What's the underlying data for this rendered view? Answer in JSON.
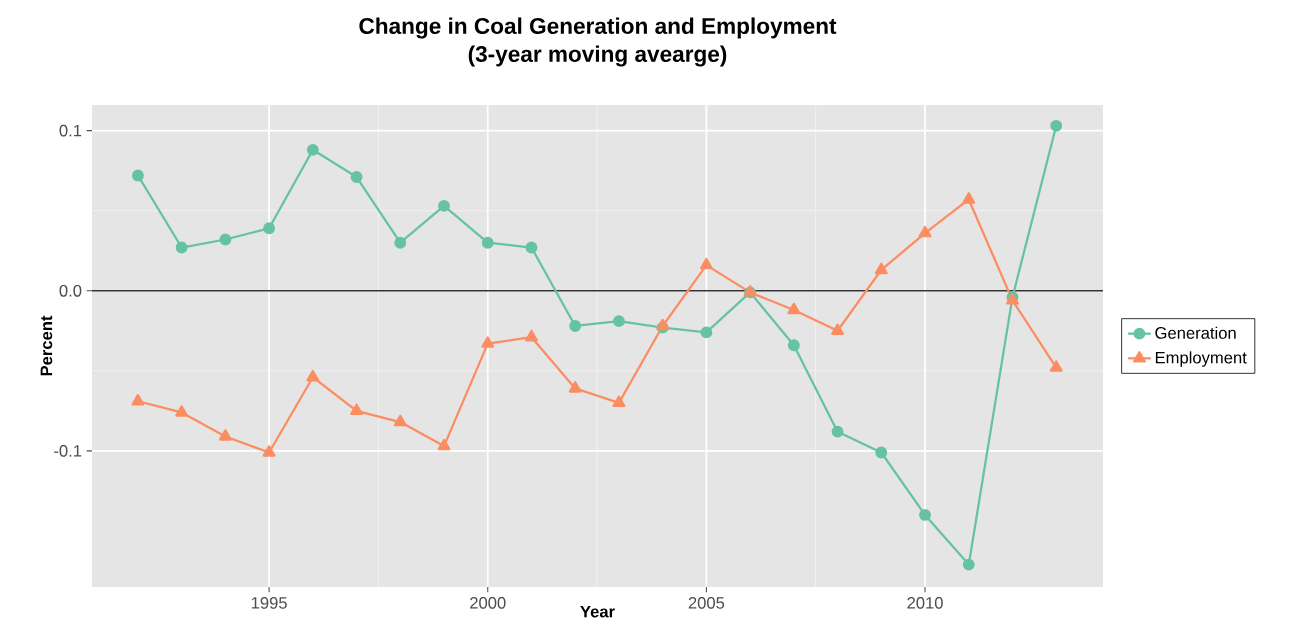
{
  "chart_data": {
    "type": "line",
    "title": "Change in Coal Generation and Employment",
    "subtitle": "(3-year moving avearge)",
    "xlabel": "Year",
    "ylabel": "Percent",
    "x": [
      1992,
      1993,
      1994,
      1995,
      1996,
      1997,
      1998,
      1999,
      2000,
      2001,
      2002,
      2003,
      2004,
      2005,
      2006,
      2007,
      2008,
      2009,
      2010,
      2011,
      2012,
      2013
    ],
    "series": [
      {
        "name": "Generation",
        "color": "#66c2a5",
        "marker": "circle",
        "values": [
          0.072,
          0.027,
          0.032,
          0.039,
          0.088,
          0.071,
          0.03,
          0.053,
          0.03,
          0.027,
          -0.022,
          -0.019,
          -0.023,
          -0.026,
          -0.001,
          -0.034,
          -0.088,
          -0.101,
          -0.14,
          -0.171,
          -0.004,
          0.103
        ]
      },
      {
        "name": "Employment",
        "color": "#fc8d62",
        "marker": "triangle",
        "values": [
          -0.069,
          -0.076,
          -0.091,
          -0.101,
          -0.054,
          -0.075,
          -0.082,
          -0.097,
          -0.033,
          -0.029,
          -0.061,
          -0.07,
          -0.022,
          0.016,
          -0.001,
          -0.012,
          -0.025,
          0.013,
          0.036,
          0.057,
          -0.006,
          -0.048
        ]
      }
    ],
    "xlim": [
      1990.95,
      2014.07
    ],
    "ylim": [
      -0.185,
      0.116
    ],
    "xticks": [
      1995,
      2000,
      2005,
      2010
    ],
    "yticks": [
      -0.1,
      {
        "value": 0,
        "label": "0.0"
      },
      0.1
    ],
    "ref_lines": [
      {
        "axis": "y",
        "value": 0,
        "color": "#333333"
      }
    ],
    "grid": true,
    "legend": "right",
    "line_style": "solid"
  }
}
